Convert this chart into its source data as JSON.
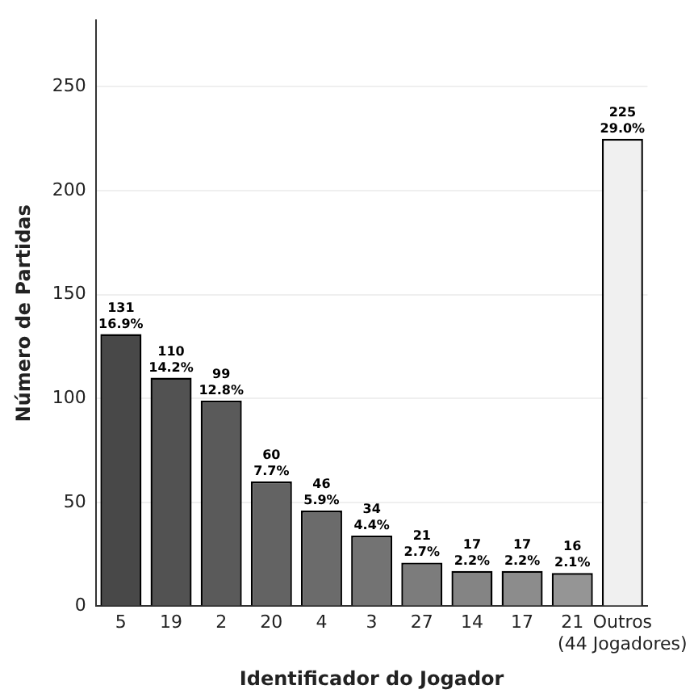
{
  "chart_data": {
    "type": "bar",
    "xlabel": "Identificador do Jogador",
    "ylabel": "Número de Partidas",
    "categories": [
      "5",
      "19",
      "2",
      "20",
      "4",
      "3",
      "27",
      "14",
      "17",
      "21",
      "Outros\n(44 Jogadores)"
    ],
    "values": [
      131,
      110,
      99,
      60,
      46,
      34,
      21,
      17,
      17,
      16,
      225
    ],
    "colors": [
      "#484848",
      "#525252",
      "#5a5a5a",
      "#636363",
      "#6b6b6b",
      "#737373",
      "#7c7c7c",
      "#848484",
      "#8c8c8c",
      "#959595",
      "#f0f0f0"
    ],
    "value_labels": [
      "131\n16.9%",
      "110\n14.2%",
      "99\n12.8%",
      "60\n7.7%",
      "46\n5.9%",
      "34\n4.4%",
      "21\n2.7%",
      "17\n2.2%",
      "17\n2.2%",
      "16\n2.1%",
      "225\n29.0%"
    ],
    "ylim": [
      0,
      282
    ],
    "yticks": [
      0,
      50,
      100,
      150,
      200,
      250
    ],
    "grid": "y",
    "legend": false
  }
}
